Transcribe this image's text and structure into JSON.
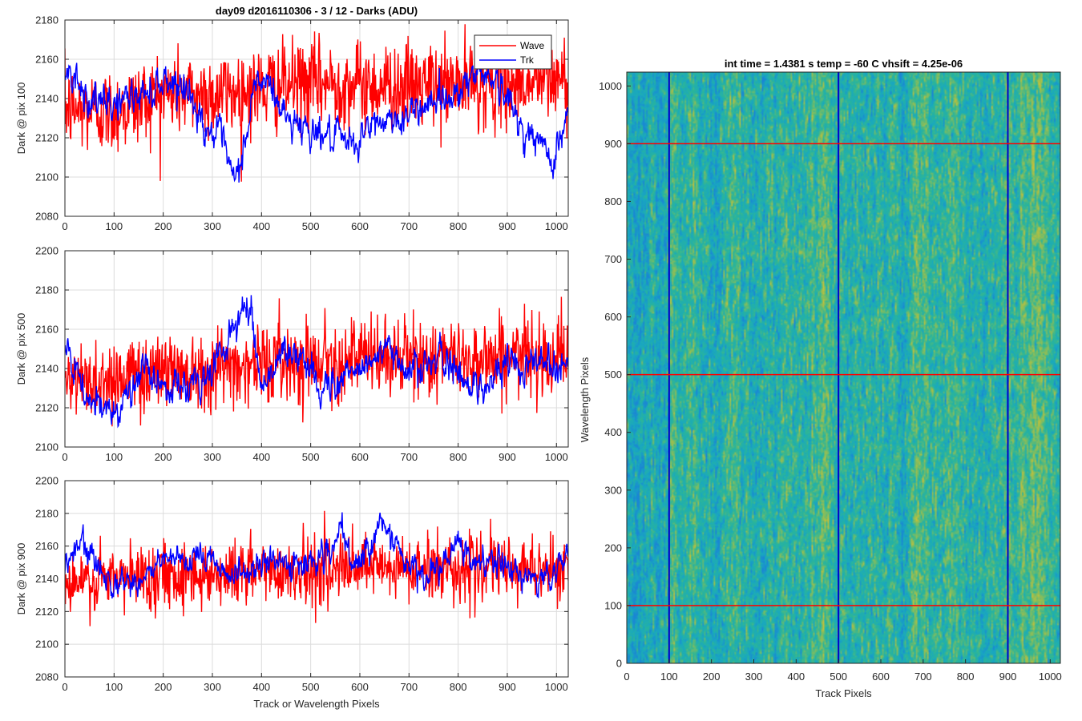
{
  "chart_data": [
    {
      "type": "line",
      "title": "day09 d2016110306 - 3 / 12 - Darks (ADU)",
      "ylabel": "Dark @ pix 100",
      "xlabel": "",
      "xlim": [
        0,
        1024
      ],
      "ylim": [
        2080,
        2180
      ],
      "xticks": [
        "0",
        "100",
        "200",
        "300",
        "400",
        "500",
        "600",
        "700",
        "800",
        "900",
        "1000"
      ],
      "yticks": [
        "2080",
        "2100",
        "2120",
        "2140",
        "2160",
        "2180"
      ],
      "grid": true,
      "legend": "top-right",
      "series": [
        {
          "name": "Wave",
          "color": "#ff0000",
          "mean": 2140,
          "noise_sd": 11,
          "trend": [
            [
              0,
              2135
            ],
            [
              100,
              2133
            ],
            [
              200,
              2143
            ],
            [
              300,
              2142
            ],
            [
              400,
              2145
            ],
            [
              500,
              2148
            ],
            [
              600,
              2147
            ],
            [
              700,
              2146
            ],
            [
              800,
              2147
            ],
            [
              900,
              2148
            ],
            [
              1024,
              2150
            ]
          ]
        },
        {
          "name": "Trk",
          "color": "#0000ff",
          "mean": 2138,
          "noise_sd": 4,
          "trend": [
            [
              0,
              2150
            ],
            [
              20,
              2155
            ],
            [
              40,
              2142
            ],
            [
              80,
              2135
            ],
            [
              120,
              2140
            ],
            [
              160,
              2142
            ],
            [
              200,
              2150
            ],
            [
              240,
              2148
            ],
            [
              280,
              2128
            ],
            [
              320,
              2118
            ],
            [
              345,
              2095
            ],
            [
              360,
              2110
            ],
            [
              390,
              2150
            ],
            [
              420,
              2145
            ],
            [
              450,
              2130
            ],
            [
              500,
              2125
            ],
            [
              540,
              2120
            ],
            [
              580,
              2115
            ],
            [
              620,
              2125
            ],
            [
              660,
              2130
            ],
            [
              700,
              2130
            ],
            [
              740,
              2140
            ],
            [
              780,
              2140
            ],
            [
              820,
              2150
            ],
            [
              860,
              2155
            ],
            [
              900,
              2140
            ],
            [
              930,
              2125
            ],
            [
              960,
              2118
            ],
            [
              990,
              2110
            ],
            [
              1010,
              2120
            ],
            [
              1024,
              2135
            ]
          ]
        }
      ]
    },
    {
      "type": "line",
      "title": "",
      "ylabel": "Dark @ pix 500",
      "xlabel": "",
      "xlim": [
        0,
        1024
      ],
      "ylim": [
        2100,
        2200
      ],
      "xticks": [
        "0",
        "100",
        "200",
        "300",
        "400",
        "500",
        "600",
        "700",
        "800",
        "900",
        "1000"
      ],
      "yticks": [
        "2100",
        "2120",
        "2140",
        "2160",
        "2180",
        "2200"
      ],
      "grid": true,
      "series": [
        {
          "name": "Wave",
          "color": "#ff0000",
          "mean": 2140,
          "noise_sd": 10,
          "trend": [
            [
              0,
              2132
            ],
            [
              100,
              2135
            ],
            [
              200,
              2140
            ],
            [
              300,
              2140
            ],
            [
              400,
              2143
            ],
            [
              500,
              2145
            ],
            [
              600,
              2145
            ],
            [
              700,
              2145
            ],
            [
              800,
              2145
            ],
            [
              900,
              2146
            ],
            [
              1024,
              2148
            ]
          ]
        },
        {
          "name": "Trk",
          "color": "#0000ff",
          "mean": 2138,
          "noise_sd": 4,
          "trend": [
            [
              0,
              2150
            ],
            [
              20,
              2138
            ],
            [
              50,
              2122
            ],
            [
              80,
              2118
            ],
            [
              120,
              2125
            ],
            [
              160,
              2138
            ],
            [
              220,
              2130
            ],
            [
              280,
              2132
            ],
            [
              320,
              2150
            ],
            [
              360,
              2168
            ],
            [
              380,
              2170
            ],
            [
              400,
              2130
            ],
            [
              440,
              2148
            ],
            [
              480,
              2145
            ],
            [
              520,
              2130
            ],
            [
              560,
              2135
            ],
            [
              600,
              2140
            ],
            [
              640,
              2148
            ],
            [
              680,
              2145
            ],
            [
              720,
              2140
            ],
            [
              760,
              2145
            ],
            [
              800,
              2138
            ],
            [
              840,
              2130
            ],
            [
              870,
              2135
            ],
            [
              900,
              2142
            ],
            [
              960,
              2145
            ],
            [
              1024,
              2142
            ]
          ]
        }
      ]
    },
    {
      "type": "line",
      "title": "",
      "ylabel": "Dark @ pix 900",
      "xlabel": "Track or Wavelength Pixels",
      "xlim": [
        0,
        1024
      ],
      "ylim": [
        2080,
        2200
      ],
      "xticks": [
        "0",
        "100",
        "200",
        "300",
        "400",
        "500",
        "600",
        "700",
        "800",
        "900",
        "1000"
      ],
      "yticks": [
        "2080",
        "2100",
        "2120",
        "2140",
        "2160",
        "2180",
        "2200"
      ],
      "grid": true,
      "series": [
        {
          "name": "Wave",
          "color": "#ff0000",
          "mean": 2142,
          "noise_sd": 10,
          "trend": [
            [
              0,
              2135
            ],
            [
              100,
              2140
            ],
            [
              200,
              2143
            ],
            [
              300,
              2143
            ],
            [
              400,
              2145
            ],
            [
              500,
              2145
            ],
            [
              600,
              2146
            ],
            [
              700,
              2146
            ],
            [
              800,
              2147
            ],
            [
              900,
              2146
            ],
            [
              1024,
              2147
            ]
          ]
        },
        {
          "name": "Trk",
          "color": "#0000ff",
          "mean": 2142,
          "noise_sd": 4,
          "trend": [
            [
              0,
              2145
            ],
            [
              30,
              2162
            ],
            [
              60,
              2150
            ],
            [
              100,
              2138
            ],
            [
              160,
              2140
            ],
            [
              200,
              2152
            ],
            [
              240,
              2148
            ],
            [
              300,
              2155
            ],
            [
              340,
              2140
            ],
            [
              400,
              2150
            ],
            [
              460,
              2148
            ],
            [
              540,
              2155
            ],
            [
              560,
              2168
            ],
            [
              590,
              2145
            ],
            [
              620,
              2160
            ],
            [
              640,
              2178
            ],
            [
              680,
              2155
            ],
            [
              720,
              2142
            ],
            [
              760,
              2145
            ],
            [
              800,
              2160
            ],
            [
              840,
              2148
            ],
            [
              880,
              2152
            ],
            [
              920,
              2142
            ],
            [
              960,
              2140
            ],
            [
              1000,
              2142
            ],
            [
              1024,
              2160
            ]
          ]
        }
      ]
    },
    {
      "type": "heatmap",
      "title": "int time = 1.4381 s    temp = -60 C    vhsift = 4.25e-06",
      "xlabel": "Track Pixels",
      "ylabel": "Wavelength Pixels",
      "xlim": [
        0,
        1024
      ],
      "ylim": [
        0,
        1024
      ],
      "xticks": [
        "0",
        "100",
        "200",
        "300",
        "400",
        "500",
        "600",
        "700",
        "800",
        "900",
        "1000"
      ],
      "yticks": [
        "0",
        "100",
        "200",
        "300",
        "400",
        "500",
        "600",
        "700",
        "800",
        "900",
        "1000"
      ],
      "colormap": [
        "#1a86d4",
        "#19a8c0",
        "#2ab59a",
        "#86bd5c",
        "#c3c03a"
      ],
      "vertical_lines": {
        "color": "#0000cc",
        "at": [
          100,
          500,
          900
        ]
      },
      "horizontal_lines": {
        "color": "#ff0000",
        "at": [
          100,
          500,
          900
        ]
      }
    }
  ]
}
